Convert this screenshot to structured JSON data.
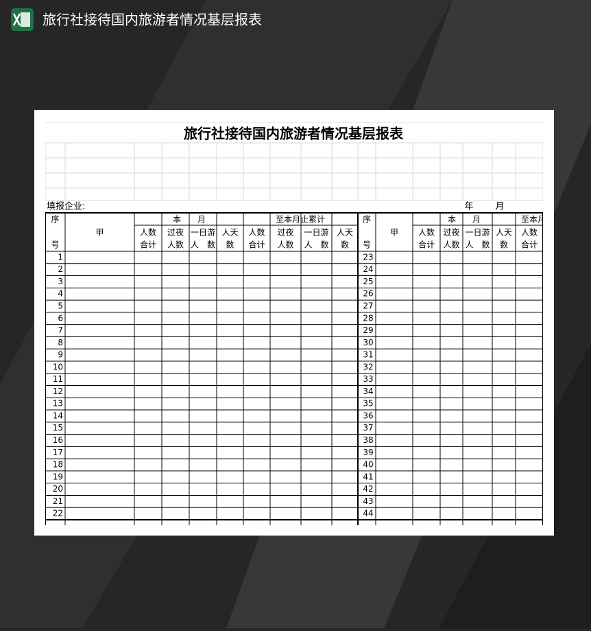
{
  "header": {
    "title": "旅行社接待国内旅游者情况基层报表"
  },
  "sheet": {
    "title": "旅行社接待国内旅游者情况基层报表",
    "company_label": "填报企业:",
    "year_label": "年",
    "month_label": "月",
    "seq_top": "序",
    "seq_bottom": "号",
    "name_col": "甲",
    "this_month": "本　　月",
    "cumulative": "至本月止累计",
    "sub_columns": [
      [
        "人数",
        "合计"
      ],
      [
        "过夜",
        "人数"
      ],
      [
        "一日游",
        "人　数"
      ],
      [
        "人天",
        "数"
      ]
    ],
    "left_rows": [
      1,
      2,
      3,
      4,
      5,
      6,
      7,
      8,
      9,
      10,
      11,
      12,
      13,
      14,
      15,
      16,
      17,
      18,
      19,
      20,
      21,
      22
    ],
    "right_rows": [
      23,
      24,
      25,
      26,
      27,
      28,
      29,
      30,
      31,
      32,
      33,
      34,
      35,
      36,
      37,
      38,
      39,
      40,
      41,
      42,
      43,
      44
    ]
  }
}
